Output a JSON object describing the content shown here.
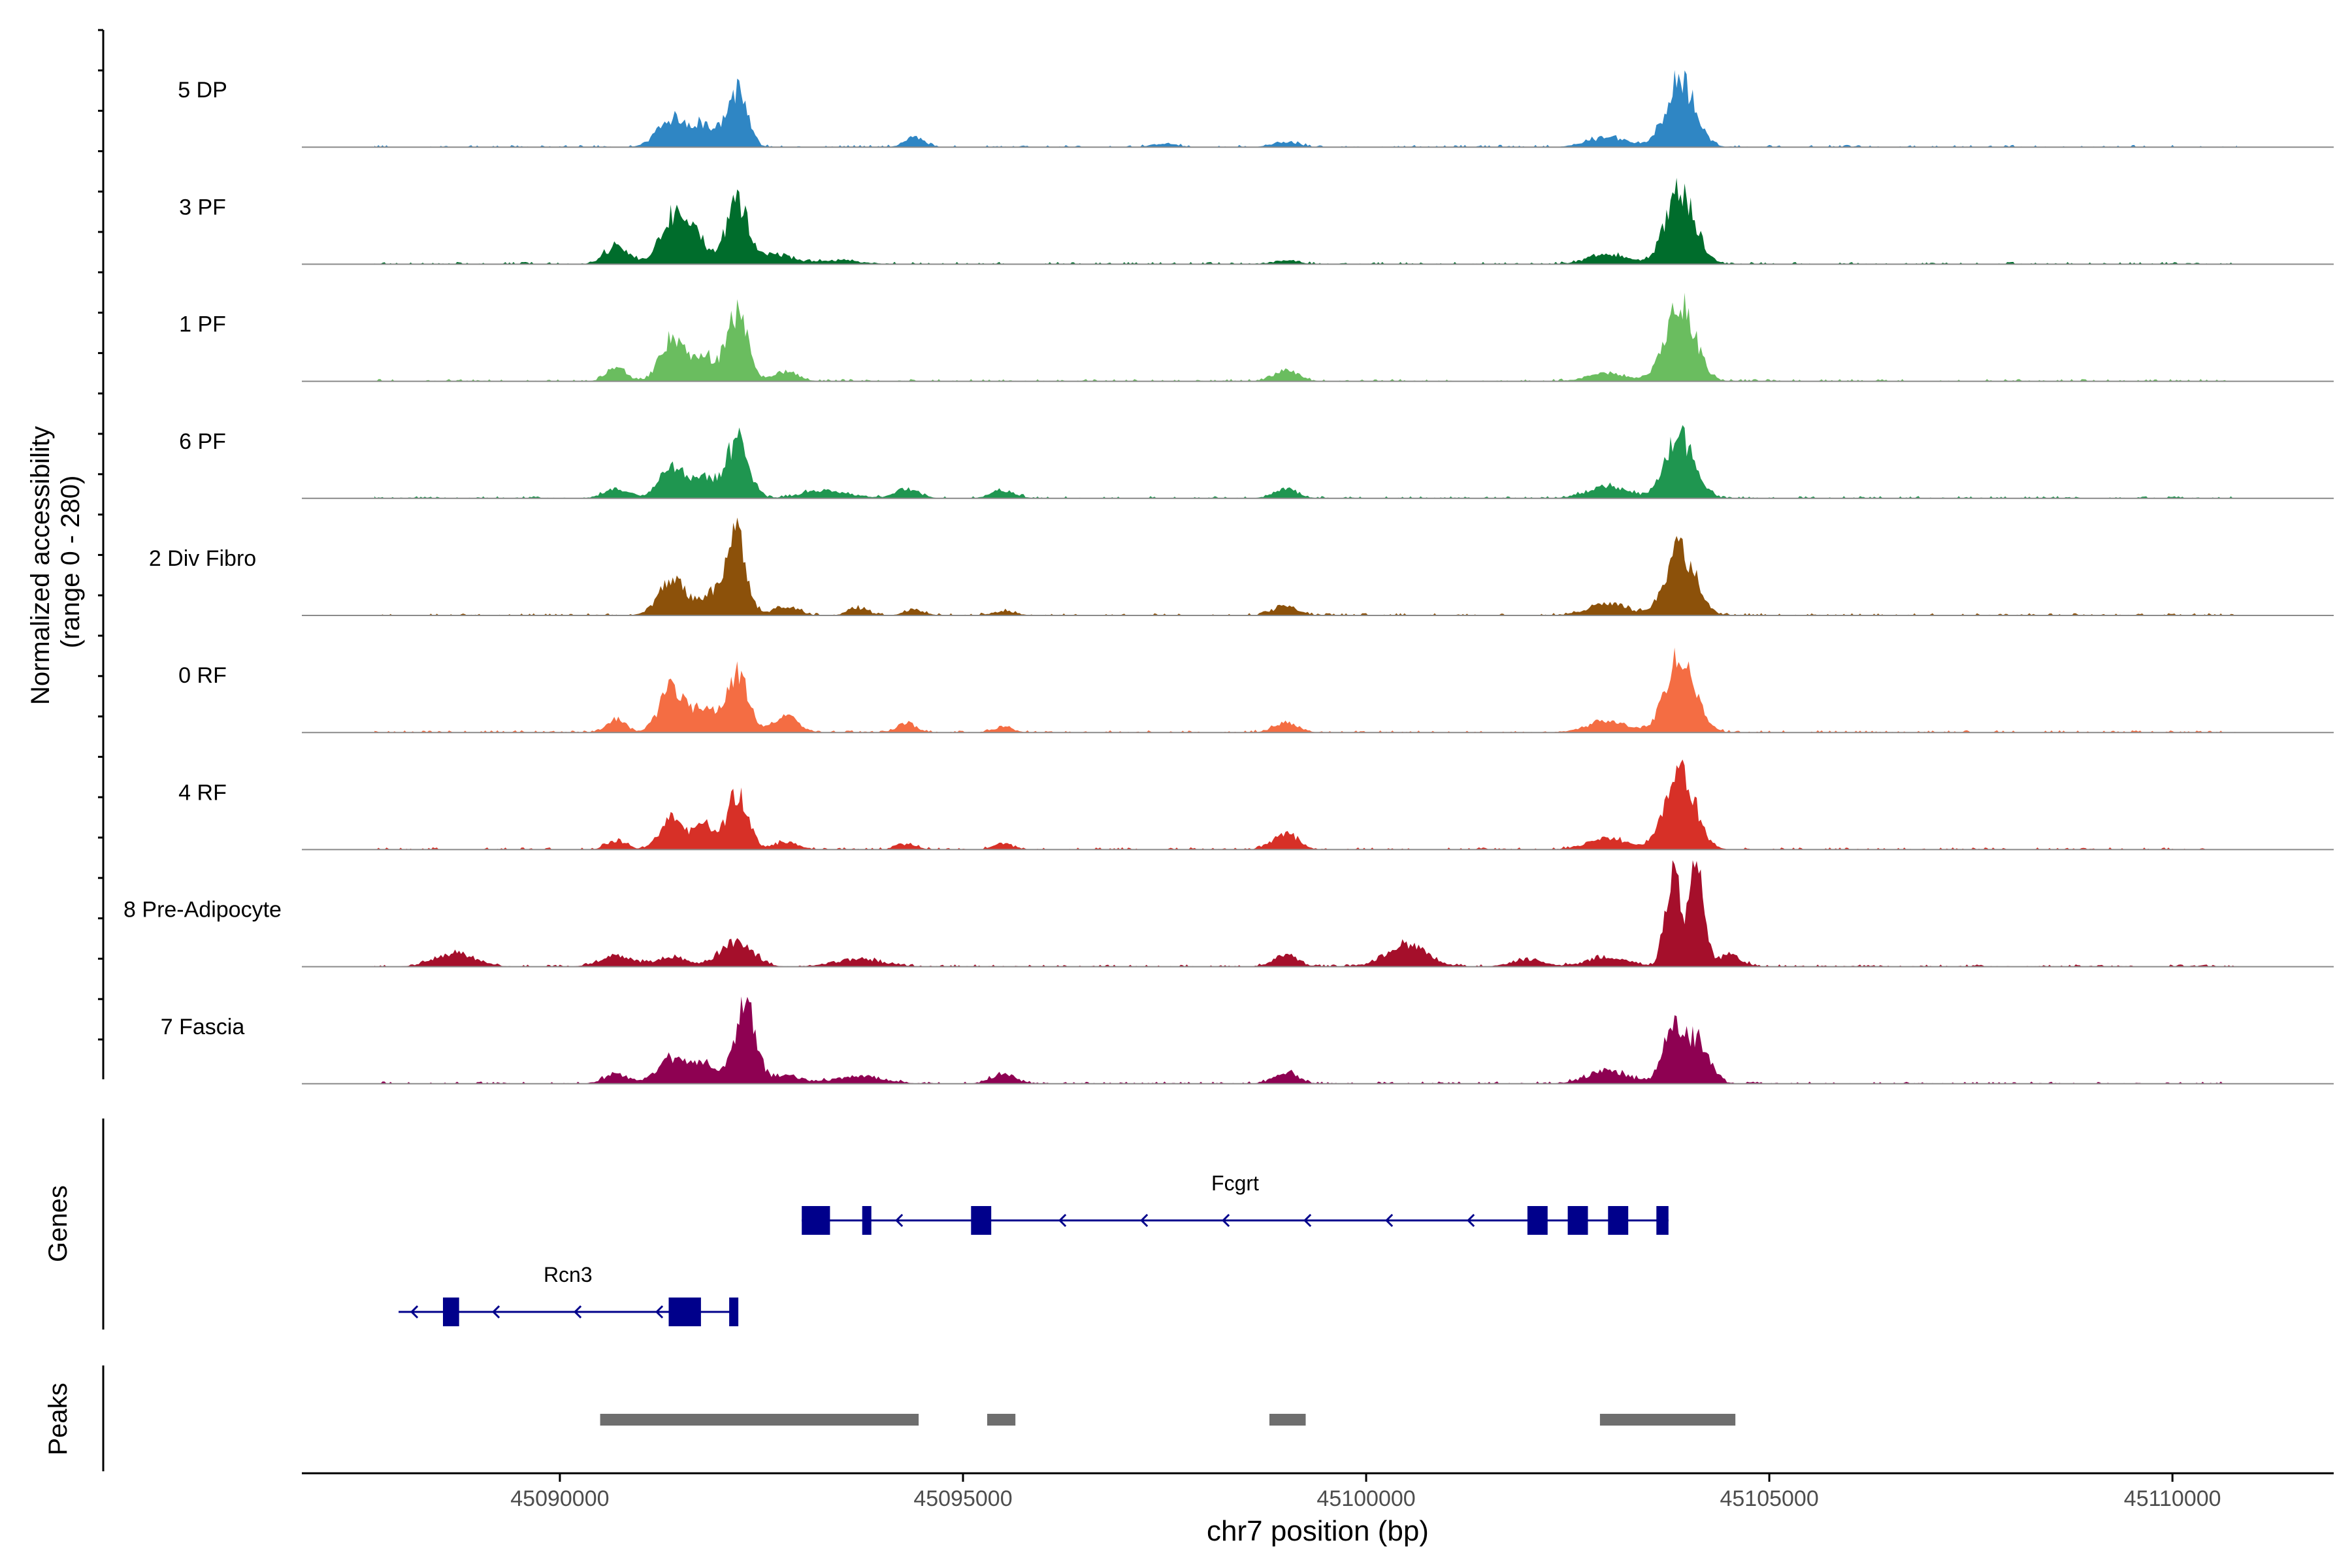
{
  "chart_data": {
    "type": "area",
    "title": "",
    "ylabel_line1": "Normalized accessibility",
    "ylabel_line2": "(range 0 - 280)",
    "xlabel": "chr7 position (bp)",
    "xlim": [
      45086800,
      45112000
    ],
    "ylim": [
      0,
      280
    ],
    "xticks": [
      45090000,
      45095000,
      45100000,
      45105000,
      45110000
    ],
    "xtick_labels": [
      "45090000",
      "45095000",
      "45100000",
      "45105000",
      "45110000"
    ],
    "track_labels": {
      "genes": "Genes",
      "peaks": "Peaks"
    },
    "series": [
      {
        "name": "5 DP",
        "color": "#2F86C4",
        "peaks": [
          [
            45091400,
            75,
            180
          ],
          [
            45091800,
            55,
            150
          ],
          [
            45092200,
            150,
            120
          ],
          [
            45094400,
            25,
            120
          ],
          [
            45097500,
            10,
            150
          ],
          [
            45099000,
            15,
            150
          ],
          [
            45103000,
            25,
            250
          ],
          [
            45103900,
            175,
            180
          ]
        ]
      },
      {
        "name": "3 PF",
        "color": "#006D2C",
        "peaks": [
          [
            45090700,
            45,
            150
          ],
          [
            45091400,
            125,
            160
          ],
          [
            45091700,
            65,
            120
          ],
          [
            45092200,
            160,
            140
          ],
          [
            45092700,
            25,
            180
          ],
          [
            45093400,
            10,
            300
          ],
          [
            45099000,
            10,
            150
          ],
          [
            45103000,
            25,
            250
          ],
          [
            45103900,
            190,
            180
          ]
        ]
      },
      {
        "name": "1 PF",
        "color": "#6ABD5F",
        "peaks": [
          [
            45090700,
            35,
            120
          ],
          [
            45091400,
            115,
            150
          ],
          [
            45091800,
            60,
            130
          ],
          [
            45092200,
            175,
            130
          ],
          [
            45092800,
            25,
            150
          ],
          [
            45099000,
            30,
            150
          ],
          [
            45103000,
            20,
            250
          ],
          [
            45103900,
            200,
            180
          ]
        ]
      },
      {
        "name": "6 PF",
        "color": "#1F9650",
        "peaks": [
          [
            45090700,
            25,
            150
          ],
          [
            45091400,
            85,
            160
          ],
          [
            45091800,
            55,
            120
          ],
          [
            45092200,
            150,
            140
          ],
          [
            45093300,
            20,
            300
          ],
          [
            45094300,
            25,
            150
          ],
          [
            45095500,
            20,
            150
          ],
          [
            45099000,
            25,
            150
          ],
          [
            45103000,
            30,
            250
          ],
          [
            45103900,
            160,
            180
          ]
        ]
      },
      {
        "name": "2 Div Fibro",
        "color": "#8C510A",
        "peaks": [
          [
            45091400,
            95,
            170
          ],
          [
            45091900,
            60,
            140
          ],
          [
            45092200,
            200,
            120
          ],
          [
            45092800,
            25,
            150
          ],
          [
            45093700,
            20,
            120
          ],
          [
            45094400,
            15,
            120
          ],
          [
            45095500,
            10,
            150
          ],
          [
            45099000,
            25,
            150
          ],
          [
            45103000,
            30,
            250
          ],
          [
            45103900,
            175,
            180
          ]
        ]
      },
      {
        "name": "0 RF",
        "color": "#F46D43",
        "peaks": [
          [
            45090700,
            35,
            120
          ],
          [
            45091400,
            125,
            150
          ],
          [
            45091800,
            65,
            120
          ],
          [
            45092200,
            165,
            130
          ],
          [
            45092800,
            45,
            150
          ],
          [
            45094300,
            25,
            120
          ],
          [
            45095500,
            15,
            120
          ],
          [
            45099000,
            25,
            150
          ],
          [
            45103000,
            30,
            250
          ],
          [
            45103900,
            200,
            180
          ]
        ]
      },
      {
        "name": "4 RF",
        "color": "#D73027",
        "peaks": [
          [
            45090700,
            25,
            120
          ],
          [
            45091400,
            85,
            150
          ],
          [
            45091800,
            60,
            120
          ],
          [
            45092200,
            145,
            130
          ],
          [
            45092800,
            20,
            150
          ],
          [
            45094300,
            15,
            120
          ],
          [
            45095500,
            15,
            120
          ],
          [
            45099000,
            45,
            150
          ],
          [
            45103000,
            30,
            250
          ],
          [
            45103900,
            210,
            180
          ]
        ]
      },
      {
        "name": "8 Pre-Adipocyte",
        "color": "#A50F2B",
        "peaks": [
          [
            45088700,
            35,
            250
          ],
          [
            45090700,
            30,
            200
          ],
          [
            45091400,
            25,
            200
          ],
          [
            45092200,
            65,
            200
          ],
          [
            45093700,
            20,
            300
          ],
          [
            45099000,
            30,
            150
          ],
          [
            45100500,
            60,
            250
          ],
          [
            45102000,
            20,
            200
          ],
          [
            45103000,
            25,
            250
          ],
          [
            45103800,
            260,
            90
          ],
          [
            45104100,
            265,
            90
          ],
          [
            45104500,
            30,
            150
          ]
        ]
      },
      {
        "name": "7 Fascia",
        "color": "#8E0152",
        "peaks": [
          [
            45090700,
            25,
            150
          ],
          [
            45091400,
            70,
            180
          ],
          [
            45091800,
            50,
            150
          ],
          [
            45092300,
            200,
            130
          ],
          [
            45092800,
            20,
            200
          ],
          [
            45093700,
            20,
            300
          ],
          [
            45095500,
            25,
            150
          ],
          [
            45099000,
            30,
            150
          ],
          [
            45103000,
            35,
            250
          ],
          [
            45103800,
            130,
            130
          ],
          [
            45104100,
            110,
            150
          ]
        ]
      }
    ],
    "genes": [
      {
        "name": "Fcgrt",
        "strand": "-",
        "start": 45093000,
        "end": 45103750,
        "exons": [
          [
            45093000,
            45093350
          ],
          [
            45093750,
            45093850
          ],
          [
            45095100,
            45095350
          ],
          [
            45102000,
            45102250
          ],
          [
            45102500,
            45102750
          ],
          [
            45103000,
            45103250
          ],
          [
            45103600,
            45103750
          ]
        ]
      },
      {
        "name": "Rcn3",
        "strand": "-",
        "start": 45088000,
        "end": 45092200,
        "exons": [
          [
            45088550,
            45088750
          ],
          [
            45091350,
            45091750
          ],
          [
            45092100,
            45092200
          ]
        ]
      }
    ],
    "peak_regions": [
      [
        45090500,
        45094450
      ],
      [
        45095300,
        45095650
      ],
      [
        45098800,
        45099250
      ],
      [
        45102900,
        45104580
      ]
    ]
  }
}
